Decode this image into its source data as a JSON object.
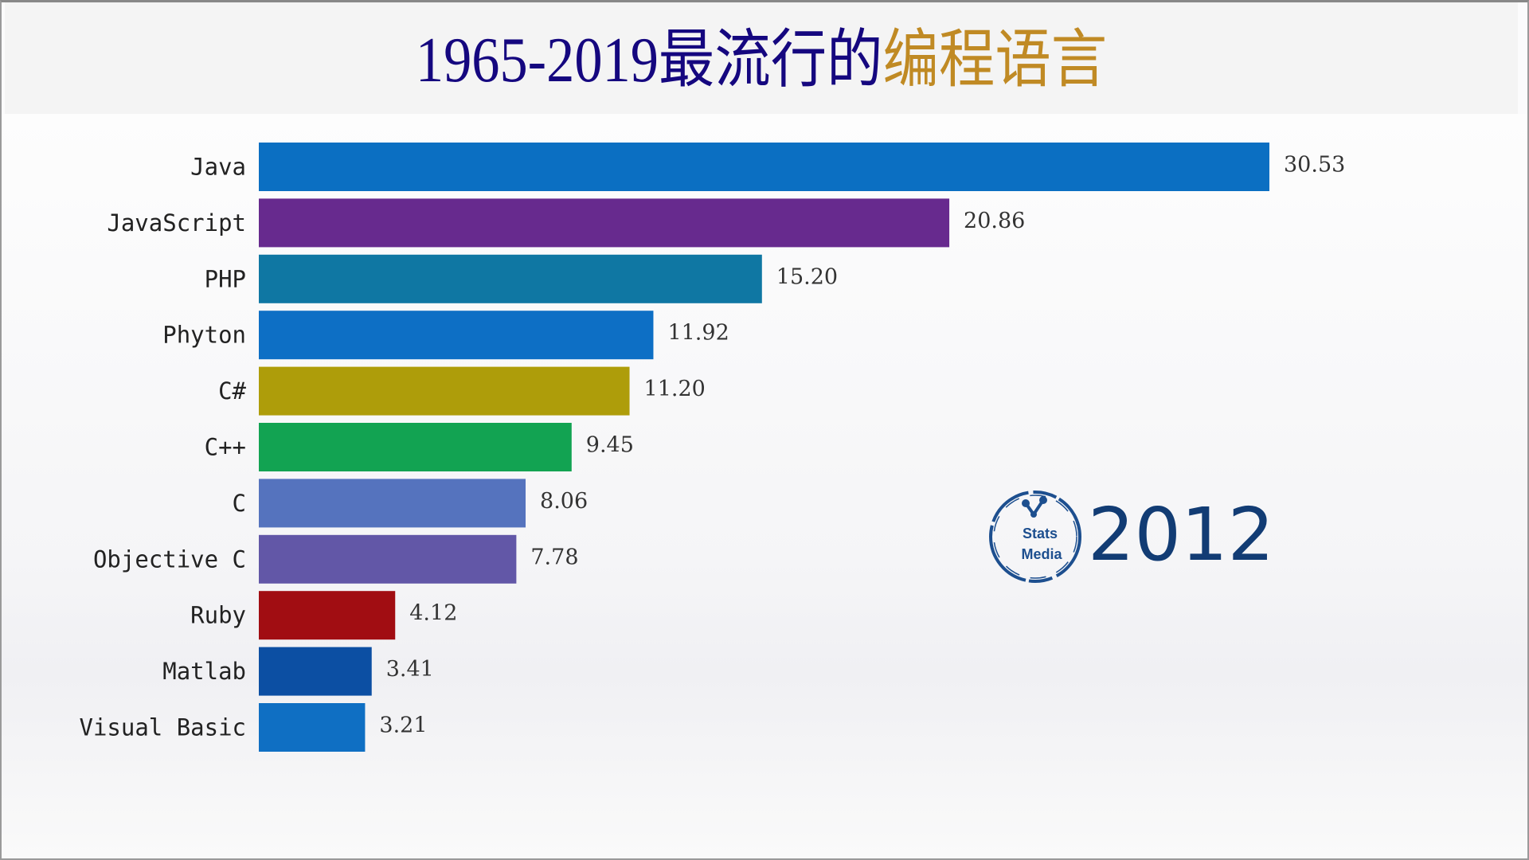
{
  "chart_data": {
    "type": "bar",
    "orientation": "horizontal",
    "title_part1": "1965-2019最流行的",
    "title_part2": "编程语言",
    "title_colors": [
      "#15077f",
      "#c08a24"
    ],
    "year": "2012",
    "categories": [
      "Java",
      "JavaScript",
      "PHP",
      "Phyton",
      "C#",
      "C++",
      "C",
      "Objective C",
      "Ruby",
      "Matlab",
      "Visual Basic"
    ],
    "values": [
      30.53,
      20.86,
      15.2,
      11.92,
      11.2,
      9.45,
      8.06,
      7.78,
      4.12,
      3.41,
      3.21
    ],
    "value_labels": [
      "30.53",
      "20.86",
      "15.20",
      "11.92",
      "11.20",
      "9.45",
      "8.06",
      "7.78",
      "4.12",
      "3.41",
      "3.21"
    ],
    "colors": [
      "#0b6fc2",
      "#672a8e",
      "#0f77a3",
      "#0d6fc5",
      "#ae9d0a",
      "#12a352",
      "#5573be",
      "#6257a7",
      "#a10d12",
      "#0c4fa3",
      "#0f6fc3"
    ],
    "xlim": [
      0,
      30.53
    ],
    "grid": false,
    "legend": "none"
  },
  "logo": {
    "line1": "Stats",
    "line2": "Media",
    "color": "#1d4f8f"
  }
}
